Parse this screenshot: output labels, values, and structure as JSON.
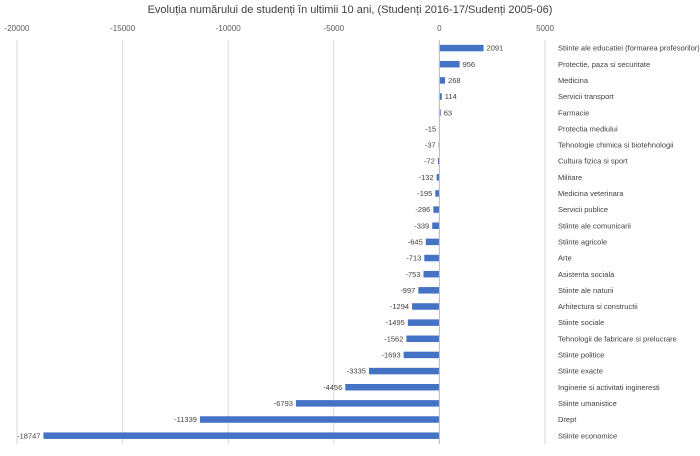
{
  "chart_data": {
    "type": "bar",
    "orientation": "horizontal",
    "title": "Evoluția numărului de studenți în ultimii 10 ani, (Studenți 2016-17/Sudenți 2005-06)",
    "xlim": [
      -20000,
      5000
    ],
    "xticks": [
      -20000,
      -15000,
      -10000,
      -5000,
      0,
      5000
    ],
    "xtick_labels": [
      "-20000",
      "-15000",
      "-10000",
      "-5000",
      "0",
      "5000"
    ],
    "grid": true,
    "bar_color": "#4472C4",
    "categories": [
      "Stiinte ale educatiei (formarea profesorilor)",
      "Protectie, paza si securitate",
      "Medicina",
      "Servicii transport",
      "Farmacie",
      "Protectia mediului",
      "Tehnologie chimica si biotehnologii",
      "Cultura fizica si sport",
      "Militare",
      "Medicina veterinara",
      "Servicii publice",
      "Stiinte ale comunicarii",
      "Stiinte agricole",
      "Arte",
      "Asistenta sociala",
      "Stiinte ale naturii",
      "Arhitectura si constructii",
      "Stiinte sociale",
      "Tehnologii de fabricare si prelucrare",
      "Stiinte politice",
      "Stiinte exacte",
      "Inginerie si activitati ingineresti",
      "Stiinte umanistice",
      "Drept",
      "Stiinte economice"
    ],
    "values": [
      2091,
      956,
      268,
      114,
      63,
      -15,
      -37,
      -72,
      -132,
      -195,
      -286,
      -339,
      -645,
      -713,
      -753,
      -997,
      -1294,
      -1495,
      -1562,
      -1693,
      -3335,
      -4456,
      -6793,
      -11339,
      -18747
    ]
  }
}
